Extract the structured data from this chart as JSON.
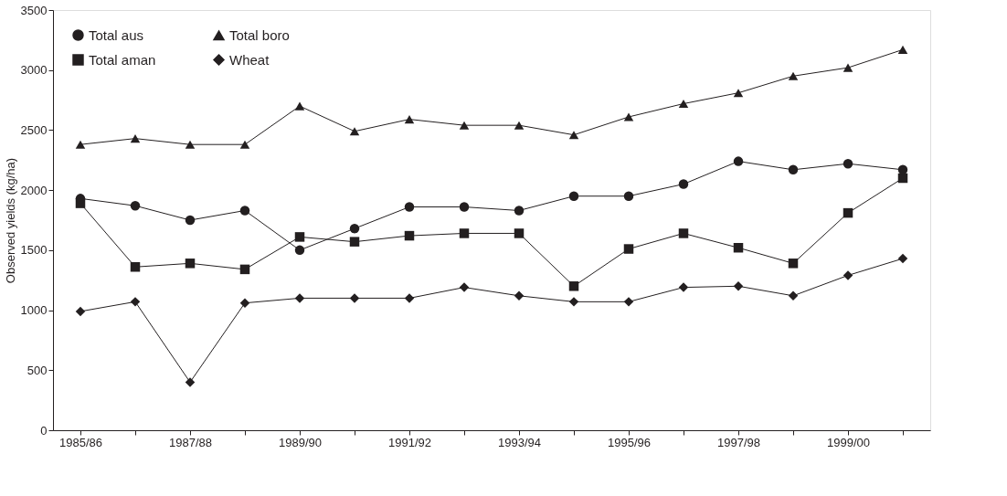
{
  "chart_data": {
    "type": "line",
    "ylabel": "Observed yields (kg/ha)",
    "categories": [
      "1985/86",
      null,
      "1987/88",
      null,
      "1989/90",
      null,
      "1991/92",
      null,
      "1993/94",
      null,
      "1995/96",
      null,
      "1997/98",
      null,
      "1999/00",
      null
    ],
    "ylim": [
      0,
      3500
    ],
    "yticks": [
      0,
      500,
      1000,
      1500,
      2000,
      2500,
      3000,
      3500
    ],
    "grid": false,
    "legend": "top left",
    "line_style": "solid",
    "series": [
      {
        "name": "Total aus",
        "color": "#231f20",
        "marker": "circle",
        "values": [
          1930,
          1870,
          1750,
          1830,
          1500,
          1680,
          1860,
          1860,
          1830,
          1950,
          1950,
          2050,
          2240,
          2170,
          2220,
          2170
        ]
      },
      {
        "name": "Total aman",
        "color": "#231f20",
        "marker": "square",
        "values": [
          1890,
          1360,
          1390,
          1340,
          1610,
          1570,
          1620,
          1640,
          1640,
          1200,
          1510,
          1640,
          1520,
          1390,
          1810,
          2100
        ]
      },
      {
        "name": "Total boro",
        "color": "#231f20",
        "marker": "triangle",
        "values": [
          2380,
          2430,
          2380,
          2380,
          2700,
          2490,
          2590,
          2540,
          2540,
          2460,
          2610,
          2720,
          2810,
          2950,
          3020,
          3170
        ]
      },
      {
        "name": "Wheat",
        "color": "#231f20",
        "marker": "diamond",
        "values": [
          990,
          1070,
          400,
          1060,
          1100,
          1100,
          1100,
          1190,
          1120,
          1070,
          1070,
          1190,
          1200,
          1120,
          1290,
          1430
        ]
      }
    ]
  }
}
